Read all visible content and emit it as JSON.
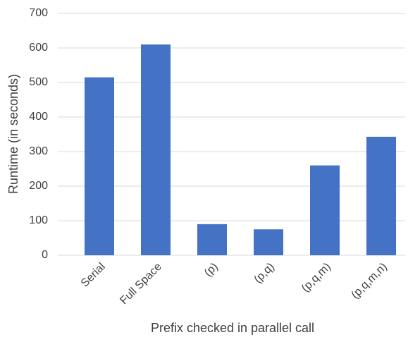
{
  "chart_data": {
    "type": "bar",
    "categories": [
      "Serial",
      "Full Space",
      "(p)",
      "(p,q)",
      "(p,q,m)",
      "(p,q,m,n)"
    ],
    "values": [
      515,
      610,
      90,
      75,
      260,
      343
    ],
    "color": "#4472c4",
    "x_label": "Prefix checked in parallel call",
    "y_label": "Runtime (in seconds)",
    "ylim": [
      0,
      700
    ],
    "yticks": [
      0,
      100,
      200,
      300,
      400,
      500,
      600,
      700
    ],
    "grid": true
  }
}
